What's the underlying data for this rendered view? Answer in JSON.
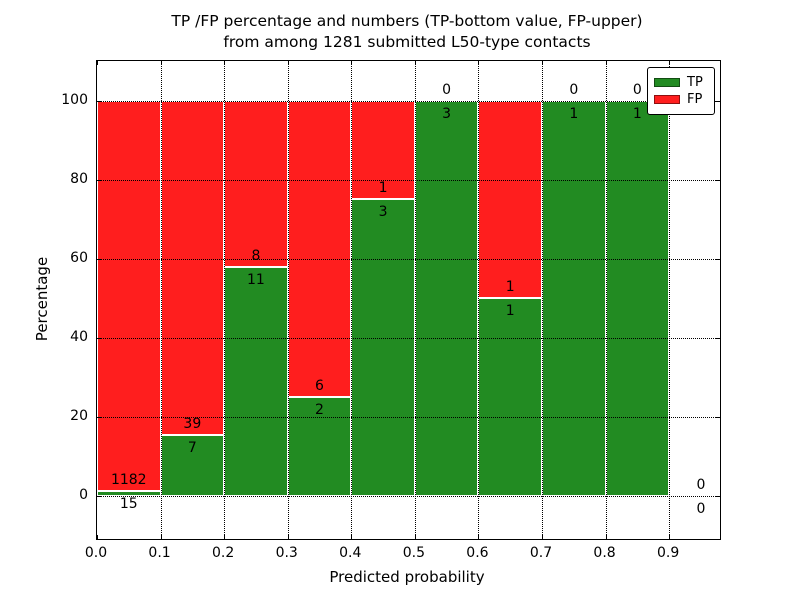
{
  "chart_data": {
    "type": "bar",
    "stacked": true,
    "title": "TP /FP percentage and numbers (TP-bottom value, FP-upper) from among 1281 submitted L50-type contacts",
    "title_lines": [
      "TP /FP percentage and numbers (TP-bottom value, FP-upper)",
      "from among 1281 submitted L50-type contacts"
    ],
    "xlabel": "Predicted probability",
    "ylabel": "Percentage",
    "total_contacts": 1281,
    "xlim": [
      0,
      0.98
    ],
    "ylim": [
      -11,
      110
    ],
    "x_tick_values": [
      0,
      0.1,
      0.2,
      0.3,
      0.4,
      0.5,
      0.6,
      0.7,
      0.8,
      0.9
    ],
    "x_tick_labels": [
      "0.0",
      "0.1",
      "0.2",
      "0.3",
      "0.4",
      "0.5",
      "0.6",
      "0.7",
      "0.8",
      "0.9"
    ],
    "y_tick_values": [
      0,
      20,
      40,
      60,
      80,
      100
    ],
    "y_tick_labels": [
      "0",
      "20",
      "40",
      "60",
      "80",
      "100"
    ],
    "grid": true,
    "bar_width": 0.1,
    "colors": {
      "tp": "#228B22",
      "fp": "#FF1E1E"
    },
    "legend": {
      "position": "upper right",
      "entries": [
        {
          "label": "TP",
          "key": "tp"
        },
        {
          "label": "FP",
          "key": "fp"
        }
      ]
    },
    "bins": [
      {
        "range": [
          0.0,
          0.1
        ],
        "tp": 15,
        "fp": 1182,
        "tp_percent": 1.3
      },
      {
        "range": [
          0.1,
          0.2
        ],
        "tp": 7,
        "fp": 39,
        "tp_percent": 15.2
      },
      {
        "range": [
          0.2,
          0.3
        ],
        "tp": 11,
        "fp": 8,
        "tp_percent": 57.9
      },
      {
        "range": [
          0.3,
          0.4
        ],
        "tp": 2,
        "fp": 6,
        "tp_percent": 25.0
      },
      {
        "range": [
          0.4,
          0.5
        ],
        "tp": 3,
        "fp": 1,
        "tp_percent": 75.0
      },
      {
        "range": [
          0.5,
          0.6
        ],
        "tp": 3,
        "fp": 0,
        "tp_percent": 100.0
      },
      {
        "range": [
          0.6,
          0.7
        ],
        "tp": 1,
        "fp": 1,
        "tp_percent": 50.0
      },
      {
        "range": [
          0.7,
          0.8
        ],
        "tp": 1,
        "fp": 0,
        "tp_percent": 100.0
      },
      {
        "range": [
          0.8,
          0.9
        ],
        "tp": 1,
        "fp": 0,
        "tp_percent": 100.0
      },
      {
        "range": [
          0.9,
          1.0
        ],
        "tp": 0,
        "fp": 0,
        "tp_percent": null
      }
    ]
  }
}
